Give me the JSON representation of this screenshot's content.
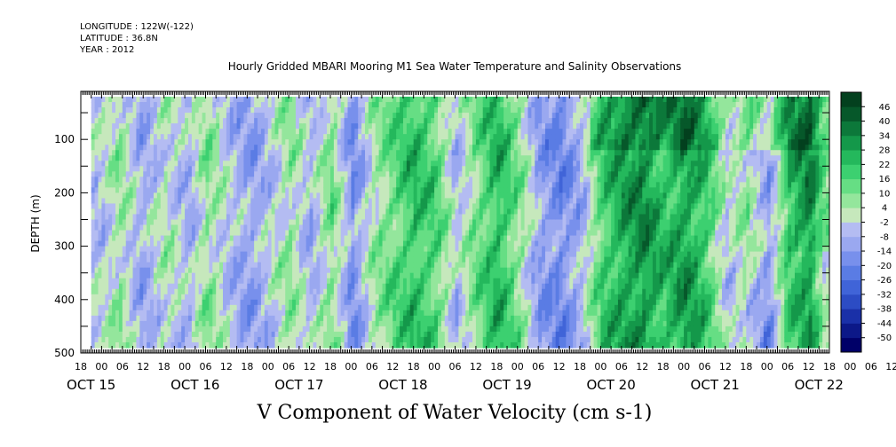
{
  "header": {
    "longitude": "LONGITUDE : 122W(-122)",
    "latitude": "LATITUDE : 36.8N",
    "year": "YEAR : 2012"
  },
  "chart_data": {
    "type": "heatmap",
    "title": "Hourly Gridded MBARI Mooring M1 Sea Water Temperature and Salinity Observations",
    "xlabel": "V Component of Water Velocity (cm s-1)",
    "ylabel": "DEPTH (m)",
    "ylim": [
      500,
      10
    ],
    "yticks": [
      100,
      200,
      300,
      400,
      500
    ],
    "day_labels": [
      "OCT 15",
      "OCT 16",
      "OCT 17",
      "OCT 18",
      "OCT 19",
      "OCT 20",
      "OCT 21",
      "OCT 22"
    ],
    "hour_labels": [
      "18",
      "00",
      "06",
      "12",
      "18",
      "00",
      "06",
      "12",
      "18",
      "00",
      "06",
      "12",
      "18",
      "00",
      "06",
      "12",
      "18",
      "00",
      "06",
      "12",
      "18",
      "00",
      "06",
      "12",
      "18",
      "00",
      "06",
      "12",
      "18",
      "00",
      "06",
      "12",
      "18",
      "00",
      "06",
      "12",
      "18",
      "00",
      "06",
      "12"
    ],
    "time_range_hours": [
      138,
      570
    ],
    "data_time_start_hours": 144,
    "data_depth_range": [
      20,
      485
    ],
    "colorbar": {
      "levels": [
        -50,
        -44,
        -38,
        -32,
        -26,
        -20,
        -14,
        -8,
        -2,
        4,
        10,
        16,
        22,
        28,
        34,
        40,
        46
      ],
      "colors": [
        "#000068",
        "#0c1888",
        "#1a30a8",
        "#2c4cc4",
        "#4064d8",
        "#5a7ce4",
        "#7890ec",
        "#9aa8f0",
        "#b4bcf2",
        "#c6e8bc",
        "#94e69c",
        "#66de84",
        "#3cd070",
        "#24b85c",
        "#14984a",
        "#0c783a",
        "#06582a",
        "#03401e"
      ]
    },
    "heatmap_note_columns": [
      {
        "t": 150,
        "v": -4
      },
      {
        "t": 160,
        "v": 6
      },
      {
        "t": 172,
        "v": -10
      },
      {
        "t": 186,
        "v": 2
      },
      {
        "t": 200,
        "v": -8
      },
      {
        "t": 210,
        "v": 8
      },
      {
        "t": 224,
        "v": -6
      },
      {
        "t": 236,
        "v": -12
      },
      {
        "t": 246,
        "v": -4
      },
      {
        "t": 258,
        "v": 6
      },
      {
        "t": 270,
        "v": -8
      },
      {
        "t": 282,
        "v": 10
      },
      {
        "t": 294,
        "v": -16
      },
      {
        "t": 306,
        "v": 4
      },
      {
        "t": 318,
        "v": 14
      },
      {
        "t": 330,
        "v": 22
      },
      {
        "t": 342,
        "v": 16
      },
      {
        "t": 354,
        "v": -6
      },
      {
        "t": 366,
        "v": 12
      },
      {
        "t": 378,
        "v": 24
      },
      {
        "t": 390,
        "v": 8
      },
      {
        "t": 402,
        "v": -12
      },
      {
        "t": 414,
        "v": -18
      },
      {
        "t": 426,
        "v": -8
      },
      {
        "t": 438,
        "v": 18
      },
      {
        "t": 450,
        "v": 28
      },
      {
        "t": 462,
        "v": 32
      },
      {
        "t": 474,
        "v": 22
      },
      {
        "t": 486,
        "v": 30
      },
      {
        "t": 498,
        "v": 20
      },
      {
        "t": 510,
        "v": -4
      },
      {
        "t": 522,
        "v": 6
      },
      {
        "t": 534,
        "v": -10
      },
      {
        "t": 546,
        "v": 24
      },
      {
        "t": 558,
        "v": 34
      },
      {
        "t": 566,
        "v": 10
      }
    ],
    "grid": false,
    "legend": "right"
  }
}
